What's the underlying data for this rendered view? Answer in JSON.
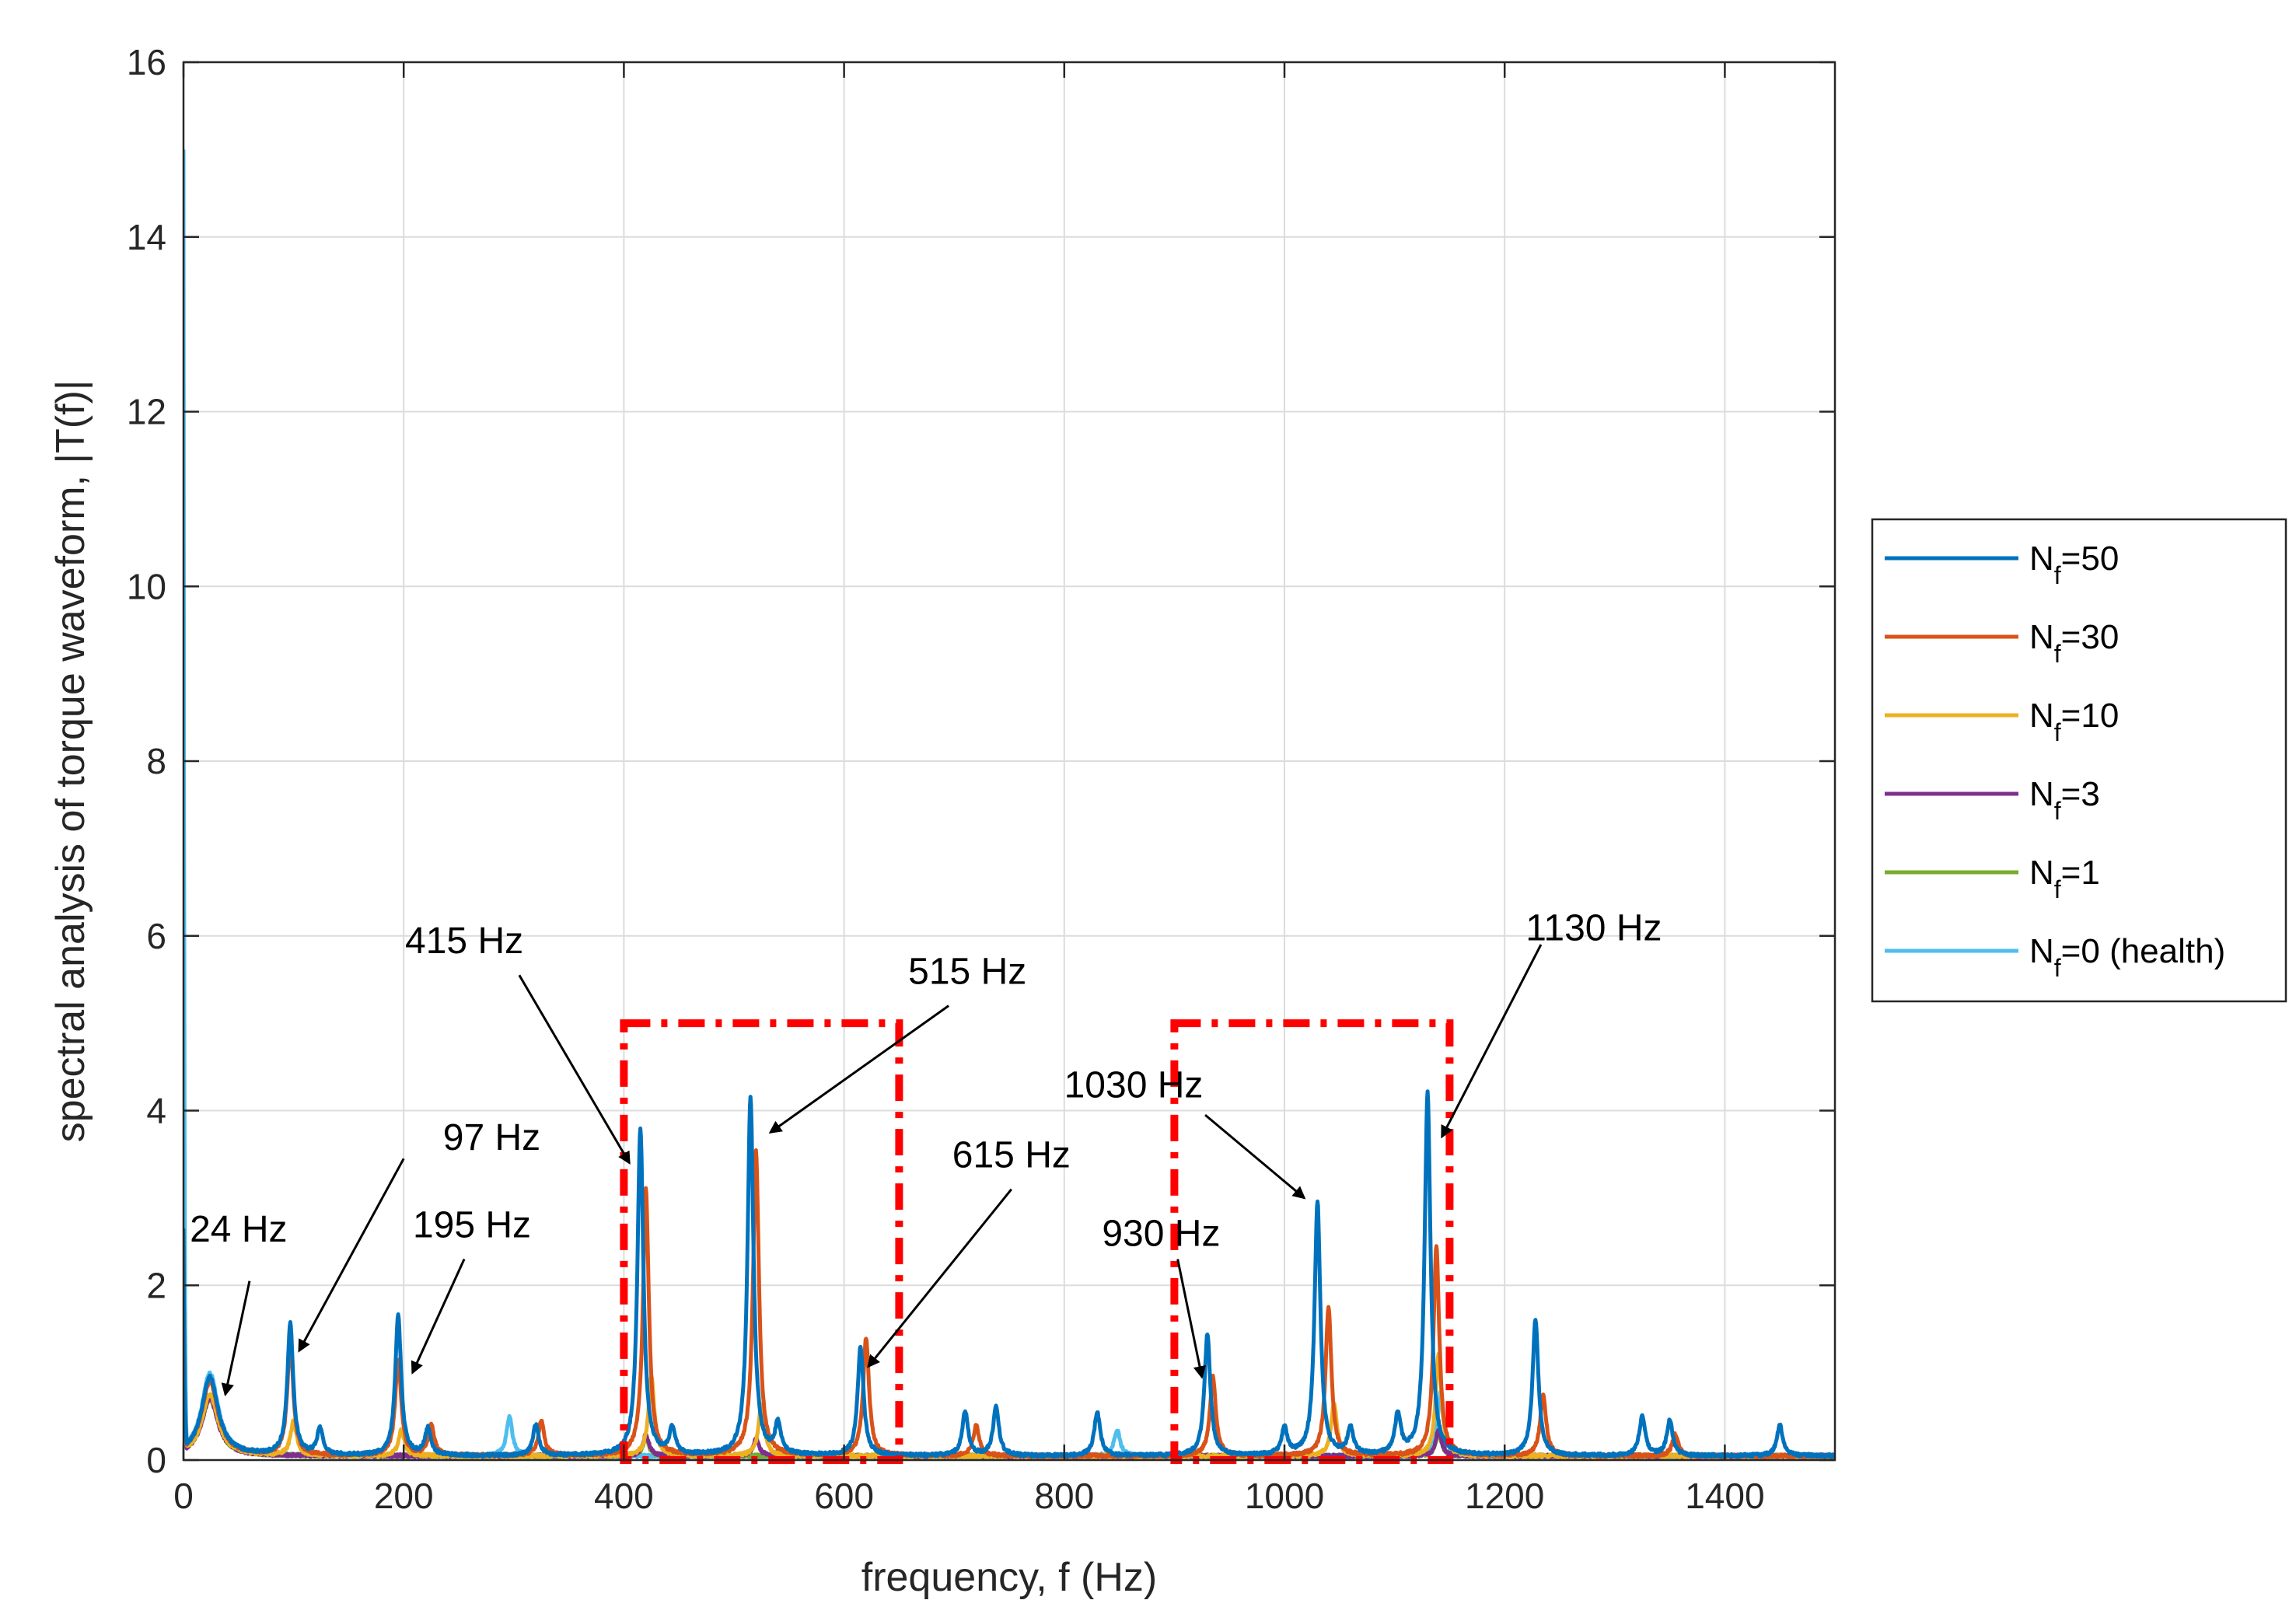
{
  "chart_data": {
    "type": "line",
    "title": "",
    "xlabel": "frequency, f (Hz)",
    "ylabel": "spectral analysis of torque waveform, |T(f)|",
    "xlim": [
      0,
      1500
    ],
    "ylim": [
      0,
      16
    ],
    "x_ticks": [
      0,
      200,
      400,
      600,
      800,
      1000,
      1200,
      1400
    ],
    "y_ticks": [
      0,
      2,
      4,
      6,
      8,
      10,
      12,
      14,
      16
    ],
    "grid": true,
    "legend_position": "outside-right",
    "series": [
      {
        "name": "N_f=50",
        "legend_main": "N",
        "legend_sub": "f",
        "legend_rest": "=50",
        "color": "#0072BD",
        "peaks": [
          [
            24,
            0.9
          ],
          [
            97,
            1.5
          ],
          [
            124,
            0.3
          ],
          [
            195,
            1.6
          ],
          [
            222,
            0.3
          ],
          [
            320,
            0.35
          ],
          [
            415,
            3.75
          ],
          [
            444,
            0.3
          ],
          [
            515,
            4.1
          ],
          [
            540,
            0.35
          ],
          [
            615,
            1.25
          ],
          [
            710,
            0.5
          ],
          [
            738,
            0.55
          ],
          [
            830,
            0.5
          ],
          [
            930,
            1.4
          ],
          [
            1000,
            0.3
          ],
          [
            1030,
            2.9
          ],
          [
            1060,
            0.3
          ],
          [
            1103,
            0.45
          ],
          [
            1130,
            4.15
          ],
          [
            1228,
            1.55
          ],
          [
            1325,
            0.45
          ],
          [
            1350,
            0.4
          ],
          [
            1450,
            0.35
          ]
        ]
      },
      {
        "name": "N_f=30",
        "legend_main": "N",
        "legend_sub": "f",
        "legend_rest": "=30",
        "color": "#D95319",
        "peaks": [
          [
            24,
            0.85
          ],
          [
            97,
            1.3
          ],
          [
            195,
            1.1
          ],
          [
            225,
            0.35
          ],
          [
            325,
            0.4
          ],
          [
            420,
            3.05
          ],
          [
            520,
            3.5
          ],
          [
            620,
            1.35
          ],
          [
            720,
            0.35
          ],
          [
            935,
            0.9
          ],
          [
            1040,
            1.7
          ],
          [
            1138,
            2.4
          ],
          [
            1235,
            0.7
          ],
          [
            1355,
            0.25
          ]
        ]
      },
      {
        "name": "N_f=10",
        "legend_main": "N",
        "legend_sub": "f",
        "legend_rest": "=10",
        "color": "#EDB120",
        "peaks": [
          [
            24,
            0.7
          ],
          [
            100,
            0.4
          ],
          [
            198,
            0.3
          ],
          [
            425,
            0.9
          ],
          [
            525,
            0.6
          ],
          [
            1045,
            0.6
          ],
          [
            1140,
            1.15
          ]
        ]
      },
      {
        "name": "N_f=3",
        "legend_main": "N",
        "legend_sub": "f",
        "legend_rest": "=3",
        "color": "#7E2F8E",
        "peaks": [
          [
            24,
            0.65
          ],
          [
            420,
            0.25
          ],
          [
            520,
            0.2
          ],
          [
            1140,
            0.3
          ]
        ]
      },
      {
        "name": "N_f=1",
        "legend_main": "N",
        "legend_sub": "f",
        "legend_rest": "=1",
        "color": "#77AC30",
        "peaks": [
          [
            24,
            0.65
          ],
          [
            420,
            0.2
          ],
          [
            1140,
            0.25
          ]
        ]
      },
      {
        "name": "N_f=0 (health)",
        "legend_main": "N",
        "legend_sub": "f",
        "legend_rest": "=0 (health)",
        "color": "#4DBEEE",
        "dc_value": 15.0,
        "peaks": [
          [
            24,
            0.95
          ],
          [
            296,
            0.45
          ],
          [
            848,
            0.3
          ],
          [
            1142,
            0.75
          ]
        ]
      }
    ],
    "highlight_boxes": [
      {
        "x_range": [
          400,
          650
        ],
        "y_range": [
          0,
          5
        ],
        "color": "#FF0000"
      },
      {
        "x_range": [
          900,
          1150
        ],
        "y_range": [
          0,
          5
        ],
        "color": "#FF0000"
      }
    ],
    "annotations": [
      {
        "text": "24 Hz",
        "label_at": [
          50,
          2.5
        ],
        "arrow_from": [
          60,
          2.05
        ],
        "arrow_to": [
          38,
          0.75
        ]
      },
      {
        "text": "97 Hz",
        "label_at": [
          280,
          3.55
        ],
        "arrow_from": [
          200,
          3.45
        ],
        "arrow_to": [
          105,
          1.25
        ]
      },
      {
        "text": "195 Hz",
        "label_at": [
          262,
          2.55
        ],
        "arrow_from": [
          255,
          2.3
        ],
        "arrow_to": [
          208,
          1.0
        ]
      },
      {
        "text": "415 Hz",
        "label_at": [
          255,
          5.8
        ],
        "arrow_from": [
          305,
          5.55
        ],
        "arrow_to": [
          405,
          3.4
        ]
      },
      {
        "text": "515 Hz",
        "label_at": [
          712,
          5.45
        ],
        "arrow_from": [
          695,
          5.2
        ],
        "arrow_to": [
          533,
          3.75
        ]
      },
      {
        "text": "615 Hz",
        "label_at": [
          752,
          3.35
        ],
        "arrow_from": [
          752,
          3.1
        ],
        "arrow_to": [
          622,
          1.07
        ]
      },
      {
        "text": "930 Hz",
        "label_at": [
          888,
          2.45
        ],
        "arrow_from": [
          903,
          2.3
        ],
        "arrow_to": [
          925,
          0.95
        ]
      },
      {
        "text": "1030 Hz",
        "label_at": [
          863,
          4.15
        ],
        "arrow_from": [
          928,
          3.95
        ],
        "arrow_to": [
          1018,
          3.0
        ]
      },
      {
        "text": "1130 Hz",
        "label_at": [
          1281,
          5.95
        ],
        "arrow_from": [
          1233,
          5.9
        ],
        "arrow_to": [
          1143,
          3.7
        ]
      }
    ]
  }
}
